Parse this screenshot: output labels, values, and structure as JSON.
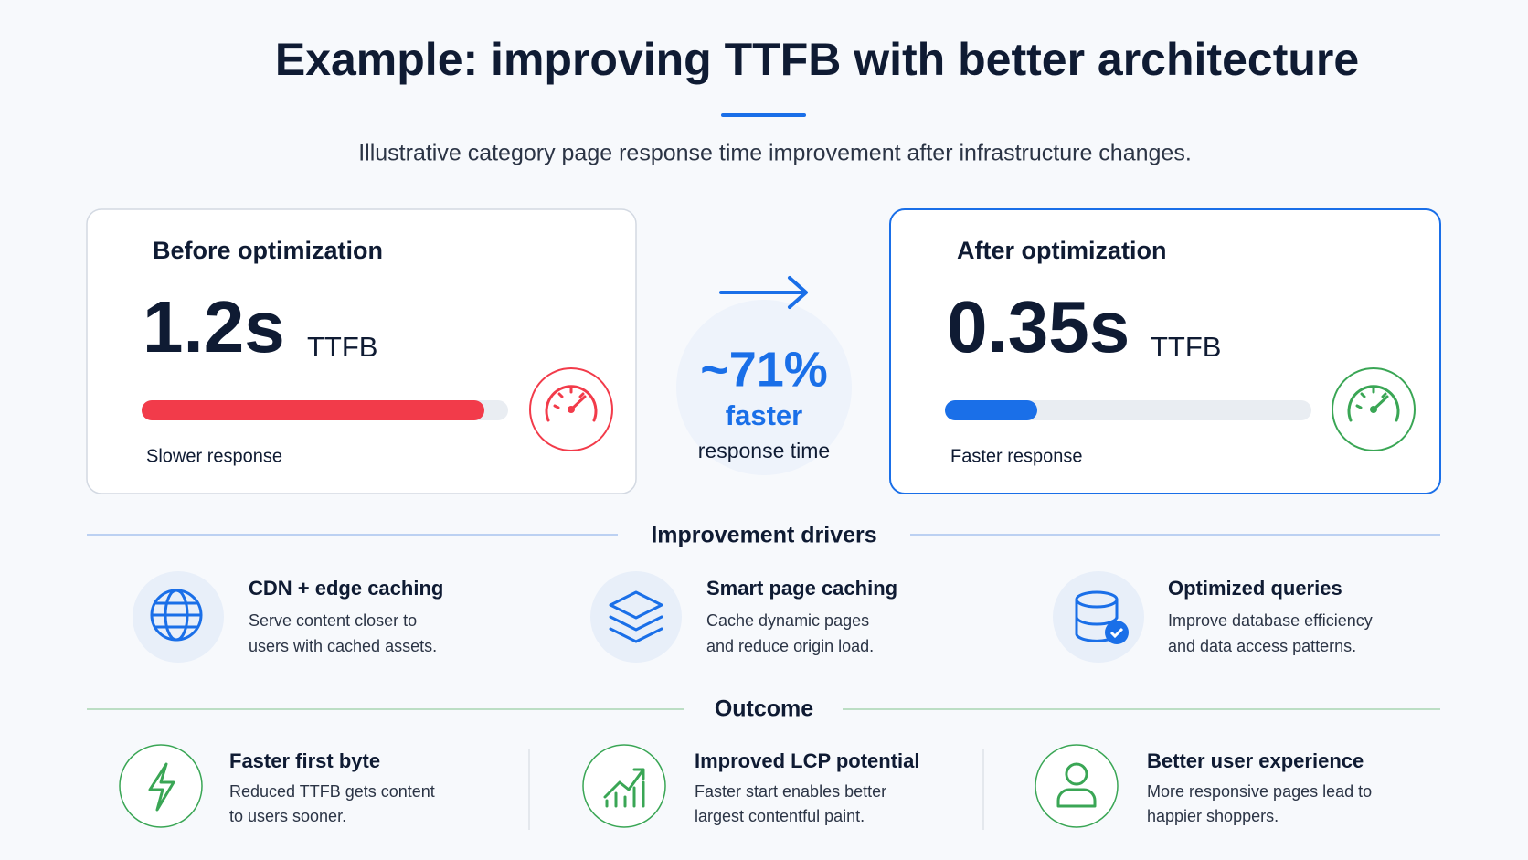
{
  "header": {
    "title": "Example: improving TTFB with better architecture",
    "subtitle": "Illustrative category page response time improvement after infrastructure changes."
  },
  "before": {
    "heading": "Before optimization",
    "value": "1.2s",
    "unit": "TTFB",
    "caption": "Slower response"
  },
  "after": {
    "heading": "After optimization",
    "value": "0.35s",
    "unit": "TTFB",
    "caption": "Faster response"
  },
  "improvement": {
    "value": "~71%",
    "label": "faster",
    "caption": "response time"
  },
  "drivers": {
    "title": "Improvement drivers",
    "items": [
      {
        "title": "CDN + edge caching",
        "lines": [
          "Serve content closer to",
          "users with cached assets."
        ]
      },
      {
        "title": "Smart page caching",
        "lines": [
          "Cache dynamic pages",
          "and reduce origin load."
        ]
      },
      {
        "title": "Optimized queries",
        "lines": [
          "Improve database efficiency",
          "and data access patterns."
        ]
      }
    ]
  },
  "outcome": {
    "title": "Outcome",
    "items": [
      {
        "title": "Faster first byte",
        "lines": [
          "Reduced TTFB gets content",
          "to users sooner."
        ]
      },
      {
        "title": "Improved LCP potential",
        "lines": [
          "Faster start enables better",
          "largest contentful paint."
        ]
      },
      {
        "title": "Better user experience",
        "lines": [
          "More responsive pages lead to",
          "happier shoppers."
        ]
      }
    ]
  }
}
